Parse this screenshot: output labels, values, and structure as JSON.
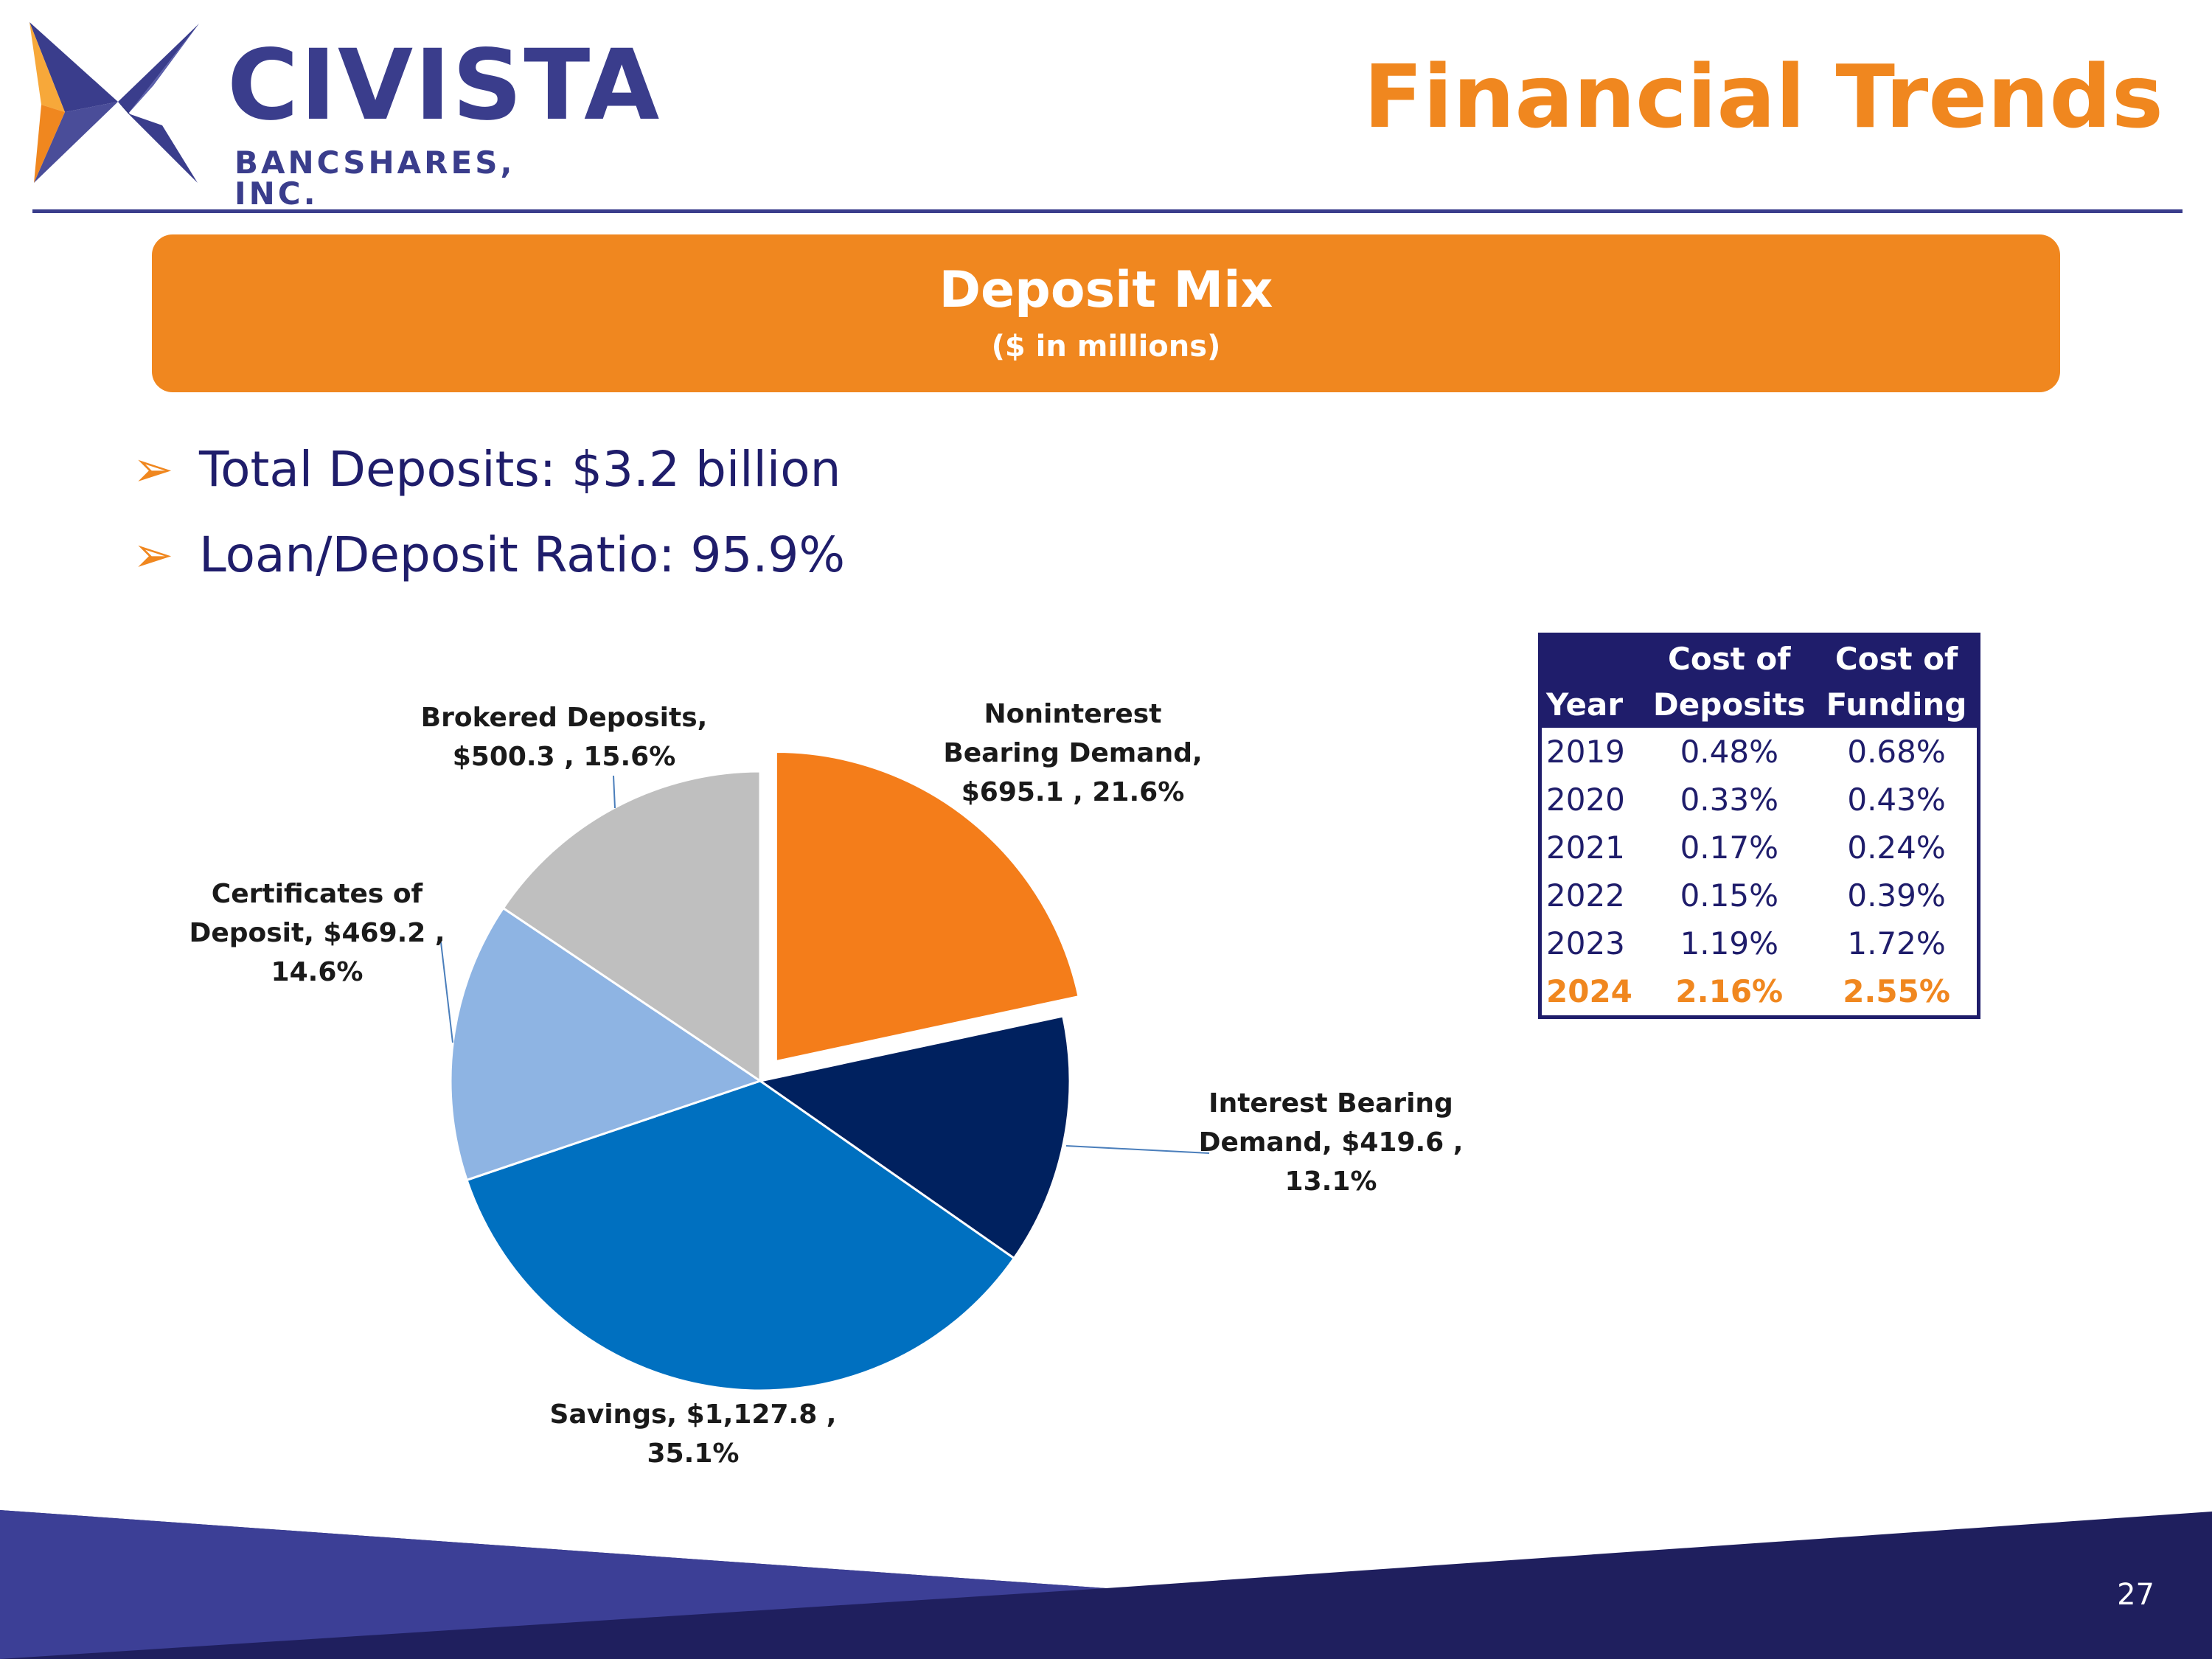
{
  "header": {
    "logo_name": "CIVISTA",
    "logo_sub": "BANCSHARES, INC.",
    "title": "Financial Trends"
  },
  "banner": {
    "title": "Deposit Mix",
    "subtitle": "($ in millions)"
  },
  "bullets": [
    "Total Deposits: $3.2 billion",
    "Loan/Deposit Ratio: 95.9%"
  ],
  "chart_data": {
    "type": "pie",
    "title": "Deposit Mix",
    "unit": "$ in millions",
    "slices": [
      {
        "name": "Noninterest Bearing Demand",
        "value": 695.1,
        "percent": 21.6,
        "color": "#f47d1a",
        "exploded": true,
        "label_lines": [
          "Noninterest",
          "Bearing Demand,",
          "$695.1 , 21.6%"
        ]
      },
      {
        "name": "Interest Bearing Demand",
        "value": 419.6,
        "percent": 13.1,
        "color": "#00215f",
        "label_lines": [
          "Interest Bearing",
          "Demand, $419.6 ,",
          "13.1%"
        ]
      },
      {
        "name": "Savings",
        "value": 1127.8,
        "percent": 35.1,
        "color": "#0070c0",
        "label_lines": [
          "Savings, $1,127.8 ,",
          "35.1%"
        ]
      },
      {
        "name": "Certificates of Deposit",
        "value": 469.2,
        "percent": 14.6,
        "color": "#8eb4e3",
        "label_lines": [
          "Certificates of",
          "Deposit, $469.2 ,",
          "14.6%"
        ]
      },
      {
        "name": "Brokered Deposits",
        "value": 500.3,
        "percent": 15.6,
        "color": "#bfbfbf",
        "label_lines": [
          "Brokered Deposits,",
          "$500.3 , 15.6%"
        ]
      }
    ]
  },
  "cost_table": {
    "headers": {
      "year": "Year",
      "deposits_top": "Cost of",
      "deposits_bottom": "Deposits",
      "funding_top": "Cost of",
      "funding_bottom": "Funding"
    },
    "rows": [
      {
        "year": "2019",
        "deposits": "0.48%",
        "funding": "0.68%"
      },
      {
        "year": "2020",
        "deposits": "0.33%",
        "funding": "0.43%"
      },
      {
        "year": "2021",
        "deposits": "0.17%",
        "funding": "0.24%"
      },
      {
        "year": "2022",
        "deposits": "0.15%",
        "funding": "0.39%"
      },
      {
        "year": "2023",
        "deposits": "1.19%",
        "funding": "1.72%"
      },
      {
        "year": "2024",
        "deposits": "2.16%",
        "funding": "2.55%"
      }
    ]
  },
  "footer": {
    "page_number": "27"
  },
  "colors": {
    "brand_blue": "#3a3d8c",
    "brand_orange": "#f0871f",
    "navy": "#1f1d6b"
  }
}
